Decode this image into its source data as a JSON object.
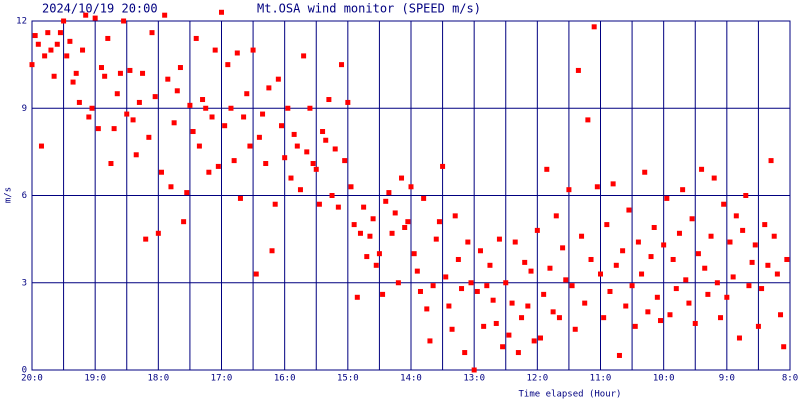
{
  "chart_data": {
    "type": "scatter",
    "title": "Mt.OSA wind monitor (SPEED m/s)",
    "timestamp": "2024/10/19 20:00",
    "xlabel": "Time elapsed (Hour)",
    "ylabel": "m/s",
    "color": "#ff0000",
    "grid": true,
    "xminor": true,
    "xlim": [
      0,
      12
    ],
    "xticks": [
      {
        "value": 0,
        "label": "20:0"
      },
      {
        "value": 1,
        "label": "19:0"
      },
      {
        "value": 2,
        "label": "18:0"
      },
      {
        "value": 3,
        "label": "17:0"
      },
      {
        "value": 4,
        "label": "16:0"
      },
      {
        "value": 5,
        "label": "15:0"
      },
      {
        "value": 6,
        "label": "14:0"
      },
      {
        "value": 7,
        "label": "13:0"
      },
      {
        "value": 8,
        "label": "12:0"
      },
      {
        "value": 9,
        "label": "11:0"
      },
      {
        "value": 10,
        "label": "10:0"
      },
      {
        "value": 11,
        "label": "9:0"
      },
      {
        "value": 12,
        "label": "8:0"
      }
    ],
    "ylim": [
      0,
      12
    ],
    "yticks": [
      0,
      3,
      6,
      9,
      12
    ],
    "x": [
      0,
      0.05,
      0.1,
      0.15,
      0.2,
      0.25,
      0.3,
      0.35,
      0.4,
      0.45,
      0.5,
      0.55,
      0.6,
      0.65,
      0.7,
      0.75,
      0.8,
      0.85,
      0.9,
      0.95,
      1,
      1.05,
      1.1,
      1.15,
      1.2,
      1.25,
      1.3,
      1.35,
      1.4,
      1.45,
      1.5,
      1.55,
      1.6,
      1.65,
      1.7,
      1.75,
      1.8,
      1.85,
      1.9,
      1.95,
      2,
      2.05,
      2.1,
      2.15,
      2.2,
      2.25,
      2.3,
      2.35,
      2.4,
      2.45,
      2.5,
      2.55,
      2.6,
      2.65,
      2.7,
      2.75,
      2.8,
      2.85,
      2.9,
      2.95,
      3,
      3.05,
      3.1,
      3.15,
      3.2,
      3.25,
      3.3,
      3.35,
      3.4,
      3.45,
      3.5,
      3.55,
      3.6,
      3.65,
      3.7,
      3.75,
      3.8,
      3.85,
      3.9,
      3.95,
      4,
      4.05,
      4.1,
      4.15,
      4.2,
      4.25,
      4.3,
      4.35,
      4.4,
      4.45,
      4.5,
      4.55,
      4.6,
      4.65,
      4.7,
      4.75,
      4.8,
      4.85,
      4.9,
      4.95,
      5,
      5.05,
      5.1,
      5.15,
      5.2,
      5.25,
      5.3,
      5.35,
      5.4,
      5.45,
      5.5,
      5.55,
      5.6,
      5.65,
      5.7,
      5.75,
      5.8,
      5.85,
      5.9,
      5.95,
      6,
      6.05,
      6.1,
      6.15,
      6.2,
      6.25,
      6.3,
      6.35,
      6.4,
      6.45,
      6.5,
      6.55,
      6.6,
      6.65,
      6.7,
      6.75,
      6.8,
      6.85,
      6.9,
      6.95,
      7,
      7.05,
      7.1,
      7.15,
      7.2,
      7.25,
      7.3,
      7.35,
      7.4,
      7.45,
      7.5,
      7.55,
      7.6,
      7.65,
      7.7,
      7.75,
      7.8,
      7.85,
      7.9,
      7.95,
      8,
      8.05,
      8.1,
      8.15,
      8.2,
      8.25,
      8.3,
      8.35,
      8.4,
      8.45,
      8.5,
      8.55,
      8.6,
      8.65,
      8.7,
      8.75,
      8.8,
      8.85,
      8.9,
      8.95,
      9,
      9.05,
      9.1,
      9.15,
      9.2,
      9.25,
      9.3,
      9.35,
      9.4,
      9.45,
      9.5,
      9.55,
      9.6,
      9.65,
      9.7,
      9.75,
      9.8,
      9.85,
      9.9,
      9.95,
      10,
      10.05,
      10.1,
      10.15,
      10.2,
      10.25,
      10.3,
      10.35,
      10.4,
      10.45,
      10.5,
      10.55,
      10.6,
      10.65,
      10.7,
      10.75,
      10.8,
      10.85,
      10.9,
      10.95,
      11,
      11.05,
      11.1,
      11.15,
      11.2,
      11.25,
      11.3,
      11.35,
      11.4,
      11.45,
      11.5,
      11.55,
      11.6,
      11.65,
      11.7,
      11.75,
      11.8,
      11.85,
      11.9,
      11.95
    ],
    "values": [
      10.5,
      11.5,
      11.2,
      7.7,
      10.8,
      11.6,
      11.0,
      10.1,
      11.2,
      11.6,
      12.0,
      10.8,
      11.3,
      9.9,
      10.2,
      9.2,
      11.0,
      12.2,
      8.7,
      9.0,
      12.1,
      8.3,
      10.4,
      10.1,
      11.4,
      7.1,
      8.3,
      9.5,
      10.2,
      12.0,
      8.8,
      10.3,
      8.6,
      7.4,
      9.2,
      10.2,
      4.5,
      8.0,
      11.6,
      9.4,
      4.7,
      6.8,
      12.2,
      10.0,
      6.3,
      8.5,
      9.6,
      10.4,
      5.1,
      6.1,
      9.1,
      8.2,
      11.4,
      7.7,
      9.3,
      9.0,
      6.8,
      8.7,
      11.0,
      7.0,
      12.3,
      8.4,
      10.5,
      9.0,
      7.2,
      10.9,
      5.9,
      8.7,
      9.5,
      7.7,
      11.0,
      3.3,
      8.0,
      8.8,
      7.1,
      9.7,
      4.1,
      5.7,
      10.0,
      8.4,
      7.3,
      9.0,
      6.6,
      8.1,
      7.7,
      6.2,
      10.8,
      7.5,
      9.0,
      7.1,
      6.9,
      5.7,
      8.2,
      7.9,
      9.3,
      6.0,
      7.6,
      5.6,
      10.5,
      7.2,
      9.2,
      6.3,
      5.0,
      2.5,
      4.7,
      5.6,
      3.9,
      4.6,
      5.2,
      3.6,
      4.0,
      2.6,
      5.8,
      6.1,
      4.7,
      5.4,
      3.0,
      6.6,
      4.9,
      5.1,
      6.3,
      4.0,
      3.4,
      2.7,
      5.9,
      2.1,
      1.0,
      2.9,
      4.5,
      5.1,
      7.0,
      3.2,
      2.2,
      1.4,
      5.3,
      3.8,
      2.8,
      0.6,
      4.4,
      3.0,
      0.0,
      2.7,
      4.1,
      1.5,
      2.9,
      3.6,
      2.4,
      1.6,
      4.5,
      0.8,
      3.0,
      1.2,
      2.3,
      4.4,
      0.6,
      1.8,
      3.7,
      2.2,
      3.4,
      1.0,
      4.8,
      1.1,
      2.6,
      6.9,
      3.5,
      2.0,
      5.3,
      1.8,
      4.2,
      3.1,
      6.2,
      2.9,
      1.4,
      10.3,
      4.6,
      2.3,
      8.6,
      3.8,
      11.8,
      6.3,
      3.3,
      1.8,
      5.0,
      2.7,
      6.4,
      3.6,
      0.5,
      4.1,
      2.2,
      5.5,
      2.9,
      1.5,
      4.4,
      3.3,
      6.8,
      2.0,
      3.9,
      4.9,
      2.5,
      1.7,
      4.3,
      5.9,
      1.9,
      3.8,
      2.8,
      4.7,
      6.2,
      3.1,
      2.3,
      5.2,
      1.6,
      4.0,
      6.9,
      3.5,
      2.6,
      4.6,
      6.6,
      3.0,
      1.8,
      5.7,
      2.5,
      4.4,
      3.2,
      5.3,
      1.1,
      4.8,
      6.0,
      2.9,
      3.7,
      4.3,
      1.5,
      2.8,
      5.0,
      3.6,
      7.2,
      4.6,
      3.3,
      1.9,
      0.8,
      3.8
    ]
  }
}
